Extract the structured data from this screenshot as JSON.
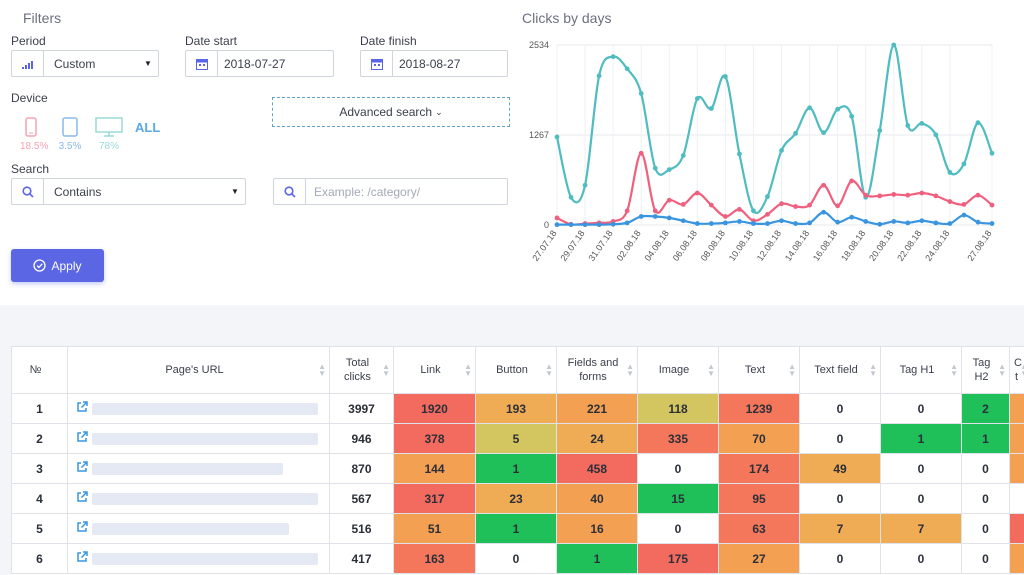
{
  "filters": {
    "title": "Filters",
    "period_label": "Period",
    "period_value": "Custom",
    "date_start_label": "Date start",
    "date_start_value": "2018-07-27",
    "date_finish_label": "Date finish",
    "date_finish_value": "2018-08-27",
    "device_label": "Device",
    "devices": [
      {
        "name": "mobile",
        "pct": "18.5%",
        "color": "#f7a3b5"
      },
      {
        "name": "tablet",
        "pct": "3.5%",
        "color": "#8ab8ea"
      },
      {
        "name": "desktop",
        "pct": "78%",
        "color": "#9adbd8"
      }
    ],
    "all_label": "ALL",
    "advanced_label": "Advanced search",
    "search_label": "Search",
    "search_mode": "Contains",
    "search_placeholder": "Example: /category/",
    "apply_label": "Apply"
  },
  "chart_data": {
    "type": "line",
    "title": "Clicks by days",
    "ylim": [
      0,
      2534
    ],
    "yticks": [
      "0",
      "1267",
      "2534"
    ],
    "x": [
      "27.07.18",
      "28.07.18",
      "29.07.18",
      "30.07.18",
      "31.07.18",
      "01.08.18",
      "02.08.18",
      "03.08.18",
      "04.08.18",
      "05.08.18",
      "06.08.18",
      "07.08.18",
      "08.08.18",
      "09.08.18",
      "10.08.18",
      "11.08.18",
      "12.08.18",
      "13.08.18",
      "14.08.18",
      "15.08.18",
      "16.08.18",
      "17.08.18",
      "18.08.18",
      "19.08.18",
      "20.08.18",
      "21.08.18",
      "22.08.18",
      "23.08.18",
      "24.08.18",
      "25.08.18",
      "26.08.18",
      "27.08.18"
    ],
    "xtick_labels": [
      "27.07.18",
      "29.07.18",
      "31.07.18",
      "02.08.18",
      "04.08.18",
      "06.08.18",
      "08.08.18",
      "10.08.18",
      "12.08.18",
      "14.08.18",
      "16.08.18",
      "18.08.18",
      "20.08.18",
      "22.08.18",
      "24.08.18",
      "27.08.18"
    ],
    "series": [
      {
        "name": "desktop",
        "color": "#4fbcc0",
        "values": [
          1240,
          390,
          560,
          2100,
          2370,
          2200,
          1850,
          800,
          780,
          980,
          1780,
          1640,
          2090,
          1000,
          200,
          400,
          1050,
          1290,
          1650,
          1300,
          1630,
          1530,
          390,
          1330,
          2534,
          1400,
          1430,
          1270,
          740,
          860,
          1440,
          1010
        ]
      },
      {
        "name": "mobile",
        "color": "#f0607e",
        "values": [
          100,
          10,
          20,
          30,
          50,
          200,
          1010,
          200,
          350,
          290,
          450,
          280,
          120,
          220,
          60,
          150,
          300,
          260,
          280,
          560,
          270,
          620,
          420,
          410,
          430,
          420,
          450,
          410,
          330,
          290,
          420,
          280
        ]
      },
      {
        "name": "tablet",
        "color": "#3a95e0",
        "values": [
          5,
          5,
          5,
          5,
          10,
          30,
          120,
          120,
          100,
          60,
          20,
          20,
          30,
          50,
          20,
          20,
          60,
          20,
          30,
          180,
          40,
          110,
          50,
          10,
          50,
          30,
          60,
          30,
          20,
          140,
          40,
          20
        ]
      }
    ]
  },
  "table": {
    "headers": [
      "№",
      "Page's URL",
      "Total clicks",
      "Link",
      "Button",
      "Fields and forms",
      "Image",
      "Text",
      "Text field",
      "Tag H1",
      "Tag H2",
      "C t"
    ],
    "rows": [
      {
        "n": "1",
        "url_w": 226,
        "total": "3997",
        "cells": [
          "1920",
          "193",
          "221",
          "118",
          "1239",
          "0",
          "0",
          "2",
          ""
        ],
        "colors": [
          "#f36a5f",
          "#f0ab55",
          "#f4a052",
          "#d3c55f",
          "#f4775b",
          "#ffffff",
          "#ffffff",
          "#1fbf5a",
          "#f4a052"
        ]
      },
      {
        "n": "2",
        "url_w": 226,
        "total": "946",
        "cells": [
          "378",
          "5",
          "24",
          "335",
          "70",
          "0",
          "1",
          "1",
          ""
        ],
        "colors": [
          "#f36a5f",
          "#d3c55f",
          "#f0ab55",
          "#f4775b",
          "#f4a052",
          "#ffffff",
          "#1fbf5a",
          "#1fbf5a",
          "#f4a052"
        ]
      },
      {
        "n": "3",
        "url_w": 191,
        "total": "870",
        "cells": [
          "144",
          "1",
          "458",
          "0",
          "174",
          "49",
          "0",
          "0",
          ""
        ],
        "colors": [
          "#f4a052",
          "#1fbf5a",
          "#f36a5f",
          "#ffffff",
          "#f4775b",
          "#f0ab55",
          "#ffffff",
          "#ffffff",
          "#f4a052"
        ]
      },
      {
        "n": "4",
        "url_w": 226,
        "total": "567",
        "cells": [
          "317",
          "23",
          "40",
          "15",
          "95",
          "0",
          "0",
          "0",
          ""
        ],
        "colors": [
          "#f36a5f",
          "#f0ab55",
          "#f4a052",
          "#1fbf5a",
          "#f4775b",
          "#ffffff",
          "#ffffff",
          "#ffffff",
          "#ffffff"
        ]
      },
      {
        "n": "5",
        "url_w": 197,
        "total": "516",
        "cells": [
          "51",
          "1",
          "16",
          "0",
          "63",
          "7",
          "7",
          "0",
          ""
        ],
        "colors": [
          "#f4a052",
          "#1fbf5a",
          "#f4a052",
          "#ffffff",
          "#f4775b",
          "#f0ab55",
          "#f0ab55",
          "#ffffff",
          "#f36a5f"
        ]
      },
      {
        "n": "6",
        "url_w": 226,
        "total": "417",
        "cells": [
          "163",
          "0",
          "1",
          "175",
          "27",
          "0",
          "0",
          "0",
          ""
        ],
        "colors": [
          "#f4775b",
          "#ffffff",
          "#1fbf5a",
          "#f36a5f",
          "#f4a052",
          "#ffffff",
          "#ffffff",
          "#ffffff",
          "#f4a052"
        ]
      }
    ]
  }
}
